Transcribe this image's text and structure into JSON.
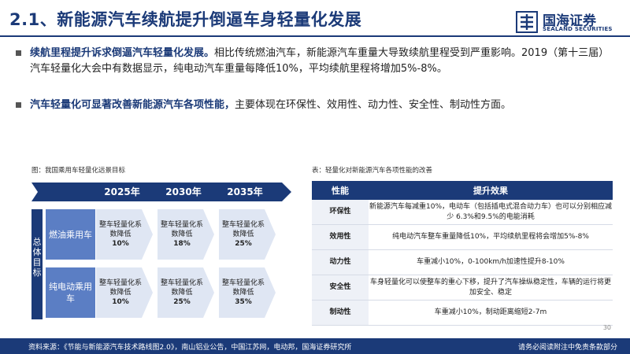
{
  "header": {
    "title": "2.1、新能源汽车续航提升倒逼车身轻量化发展",
    "logo_cn": "国海证券",
    "logo_en": "SEALAND SECURITIES",
    "brand_color": "#1b3a78"
  },
  "bullets": [
    {
      "bold": "续航里程提升诉求倒逼汽车轻量化发展。",
      "text": "相比传统燃油汽车，新能源汽车重量大导致续航里程受到严重影响。2019（第十三届）汽车轻量化大会中有数据显示，纯电动汽车重量每降低10%，平均续航里程将增加5%-8%。"
    },
    {
      "bold": "汽车轻量化可显著改善新能源汽车各项性能，",
      "text": "主要体现在环保性、效用性、动力性、安全性、制动性方面。"
    }
  ],
  "figure": {
    "caption": "图：我国乘用车轻量化远景目标",
    "years": [
      "2025年",
      "2030年",
      "2035年"
    ],
    "side_label": "总体目标",
    "rows": [
      {
        "label": "燃油乘用车",
        "cells": [
          {
            "text": "整车轻量化系数降低",
            "value": "10%"
          },
          {
            "text": "整车轻量化系数降低",
            "value": "18%"
          },
          {
            "text": "整车轻量化系数降低",
            "value": "25%"
          }
        ]
      },
      {
        "label": "纯电动乘用车",
        "cells": [
          {
            "text": "整车轻量化系数降低",
            "value": "10%"
          },
          {
            "text": "整车轻量化系数降低",
            "value": "25%"
          },
          {
            "text": "整车轻量化系数降低",
            "value": "35%"
          }
        ]
      }
    ]
  },
  "table": {
    "caption": "表：轻量化对新能源汽车各项性能的改善",
    "headers": [
      "性能",
      "提升效果"
    ],
    "rows": [
      {
        "k": "环保性",
        "v": "新能源汽车每减重10%，电动车（包括插电式混合动力车）也可以分别相应减少 6.3%和9.5%的电能消耗"
      },
      {
        "k": "效用性",
        "v": "纯电动汽车整车重量降低10%，平均续航里程将会增加5%-8%"
      },
      {
        "k": "动力性",
        "v": "车重减小10%，0-100km/h加速性提升8-10%"
      },
      {
        "k": "安全性",
        "v": "车身轻量化可以使整车的重心下移，提升了汽车操纵稳定性，车辆的运行将更加安全、稳定"
      },
      {
        "k": "制动性",
        "v": "车重减小10%，制动距离缩短2-7m"
      }
    ]
  },
  "page_number": "30",
  "footer": {
    "source": "资料来源：《节能与新能源汽车技术路线图2.0》，南山铝业公告，中国江苏网，电动邦，国海证券研究所",
    "disclaimer": "请务必阅读附注中免责条款部分"
  }
}
